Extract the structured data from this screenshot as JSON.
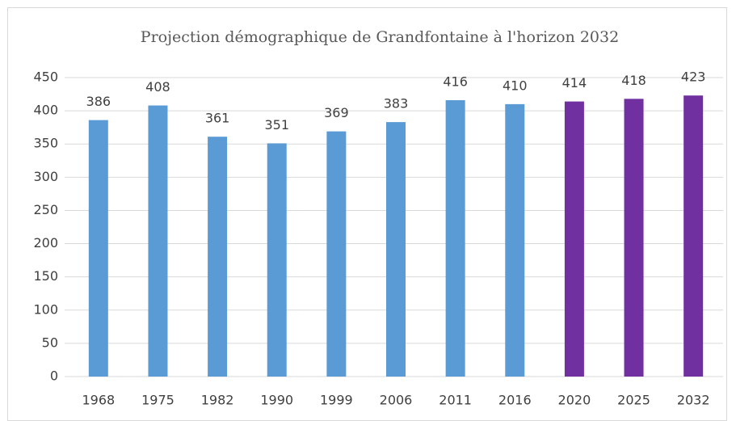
{
  "chart_data": {
    "type": "bar",
    "title": "Projection démographique de Grandfontaine à l'horizon 2032",
    "categories": [
      "1968",
      "1975",
      "1982",
      "1990",
      "1999",
      "2006",
      "2011",
      "2016",
      "2020",
      "2025",
      "2032"
    ],
    "values": [
      386,
      408,
      361,
      351,
      369,
      383,
      416,
      410,
      414,
      418,
      423
    ],
    "colors": [
      "#5b9bd5",
      "#5b9bd5",
      "#5b9bd5",
      "#5b9bd5",
      "#5b9bd5",
      "#5b9bd5",
      "#5b9bd5",
      "#5b9bd5",
      "#7030a0",
      "#7030a0",
      "#7030a0"
    ],
    "ylim": [
      0,
      450
    ],
    "yticks": [
      0,
      50,
      100,
      150,
      200,
      250,
      300,
      350,
      400,
      450
    ],
    "grid": true
  }
}
